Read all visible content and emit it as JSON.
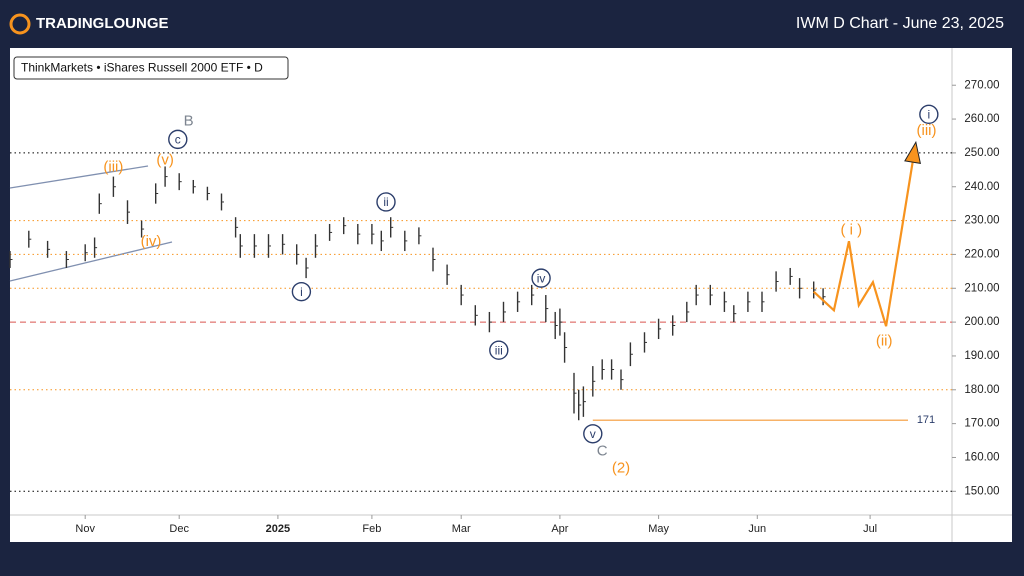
{
  "header": {
    "logo": "TRADINGLOUNGE",
    "title": "IWM D Chart - June 23, 2025"
  },
  "chart_data": {
    "type": "ohlc",
    "legend_text": "ThinkMarkets • iShares Russell 2000 ETF • D",
    "xlim": [
      0,
      200
    ],
    "ylim": [
      143,
      281
    ],
    "xticks": [
      {
        "value": 16,
        "label": "Nov"
      },
      {
        "value": 36,
        "label": "Dec"
      },
      {
        "value": 57,
        "label": "2025"
      },
      {
        "value": 77,
        "label": "Feb"
      },
      {
        "value": 96,
        "label": "Mar"
      },
      {
        "value": 117,
        "label": "Apr"
      },
      {
        "value": 138,
        "label": "May"
      },
      {
        "value": 159,
        "label": "Jun"
      },
      {
        "value": 183,
        "label": "Jul"
      }
    ],
    "yticks": [
      {
        "value": 150,
        "label": "150.00"
      },
      {
        "value": 160,
        "label": "160.00"
      },
      {
        "value": 170,
        "label": "170.00"
      },
      {
        "value": 180,
        "label": "180.00"
      },
      {
        "value": 190,
        "label": "190.00"
      },
      {
        "value": 200,
        "label": "200.00"
      },
      {
        "value": 210,
        "label": "210.00"
      },
      {
        "value": 220,
        "label": "220.00"
      },
      {
        "value": 230,
        "label": "230.00"
      },
      {
        "value": 240,
        "label": "240.00"
      },
      {
        "value": 250,
        "label": "250.00"
      },
      {
        "value": 260,
        "label": "260.00"
      },
      {
        "value": 270,
        "label": "270.00"
      }
    ],
    "color": "#333333",
    "x": [
      0,
      4,
      8,
      12,
      16,
      18,
      19,
      22,
      25,
      28,
      31,
      33,
      36,
      39,
      42,
      45,
      48,
      49,
      52,
      55,
      58,
      61,
      63,
      65,
      68,
      71,
      74,
      77,
      79,
      81,
      84,
      87,
      90,
      93,
      96,
      99,
      102,
      105,
      108,
      111,
      114,
      116,
      117,
      118,
      120,
      121,
      122,
      124,
      126,
      128,
      130,
      132,
      135,
      138,
      141,
      144,
      146,
      149,
      152,
      154,
      157,
      160,
      163,
      166,
      168,
      171,
      173
    ],
    "high": [
      221,
      227,
      224,
      221,
      223,
      225,
      238,
      243,
      236,
      230,
      241,
      246,
      244,
      242,
      240,
      238,
      231,
      226,
      226,
      226,
      226,
      223,
      219,
      226,
      229,
      231,
      229,
      229,
      227,
      231,
      227,
      228,
      222,
      217,
      211,
      205,
      203,
      206,
      209,
      211,
      208,
      203,
      204,
      197,
      185,
      180,
      181,
      187,
      189,
      189,
      186,
      194,
      197,
      201,
      202,
      206,
      211,
      211,
      209,
      205,
      209,
      209,
      215,
      216,
      213,
      212,
      210
    ],
    "low": [
      216,
      222,
      219,
      216,
      218,
      219,
      232,
      237,
      229,
      225,
      235,
      240,
      239,
      238,
      236,
      233,
      225,
      219,
      219,
      219,
      220,
      217,
      213,
      219,
      224,
      226,
      223,
      223,
      221,
      225,
      221,
      223,
      215,
      211,
      205,
      199,
      197,
      200,
      203,
      205,
      200,
      195,
      196,
      188,
      173,
      171,
      172,
      178,
      183,
      183,
      180,
      187,
      191,
      195,
      196,
      200,
      205,
      205,
      203,
      200,
      203,
      203,
      209,
      211,
      207,
      207,
      205
    ],
    "projection": {
      "color": "#f7931e",
      "x": [
        171,
        175.3,
        178.5,
        180.6,
        183.6,
        186.4,
        192.6
      ],
      "values": [
        209,
        203.5,
        223.9,
        205,
        211.8,
        198.8,
        252
      ]
    },
    "levels": [
      {
        "value": 250,
        "color": "#000000",
        "style": "dotted"
      },
      {
        "value": 230,
        "color": "#f7931e",
        "style": "dotted"
      },
      {
        "value": 220,
        "color": "#f7931e",
        "style": "dotted"
      },
      {
        "value": 210,
        "color": "#f7931e",
        "style": "dotted"
      },
      {
        "value": 200,
        "color": "#d9534f",
        "style": "dashed"
      },
      {
        "value": 180,
        "color": "#f7931e",
        "style": "dotted"
      },
      {
        "value": 150,
        "color": "#000000",
        "style": "dotted"
      }
    ],
    "support": {
      "value": 171,
      "from": 124,
      "color": "#f7b267"
    },
    "annotations": [
      {
        "text": "B",
        "x": 38,
        "y": 259.6,
        "color": "#7d8590",
        "circled": false
      },
      {
        "text": "c",
        "x": 35.7,
        "y": 254,
        "color": "#2c3e6b",
        "circled": true
      },
      {
        "text": "(iii)",
        "x": 22,
        "y": 246,
        "color": "#f7931e",
        "circled": false
      },
      {
        "text": "(v)",
        "x": 33,
        "y": 248,
        "color": "#f7931e",
        "circled": false
      },
      {
        "text": "(iv)",
        "x": 30,
        "y": 224,
        "color": "#f7931e",
        "circled": false
      },
      {
        "text": "i",
        "x": 62,
        "y": 209,
        "color": "#2c3e6b",
        "circled": true
      },
      {
        "text": "ii",
        "x": 80,
        "y": 235.5,
        "color": "#2c3e6b",
        "circled": true
      },
      {
        "text": "iii",
        "x": 104,
        "y": 191.7,
        "color": "#2c3e6b",
        "circled": true
      },
      {
        "text": "iv",
        "x": 113,
        "y": 213,
        "color": "#2c3e6b",
        "circled": true
      },
      {
        "text": "v",
        "x": 124,
        "y": 167,
        "color": "#2c3e6b",
        "circled": true
      },
      {
        "text": "C",
        "x": 126,
        "y": 162,
        "color": "#7d8590",
        "circled": false
      },
      {
        "text": "(2)",
        "x": 130,
        "y": 157,
        "color": "#f7931e",
        "circled": false
      },
      {
        "text": "( i )",
        "x": 179,
        "y": 227.4,
        "color": "#f7931e",
        "circled": false
      },
      {
        "text": "(ii)",
        "x": 186,
        "y": 194.6,
        "color": "#f7931e",
        "circled": false
      },
      {
        "text": "(iii)",
        "x": 195,
        "y": 256.7,
        "color": "#f7931e",
        "circled": false
      },
      {
        "text": "i",
        "x": 195.5,
        "y": 261.4,
        "color": "#2c3e6b",
        "circled": true
      }
    ]
  }
}
